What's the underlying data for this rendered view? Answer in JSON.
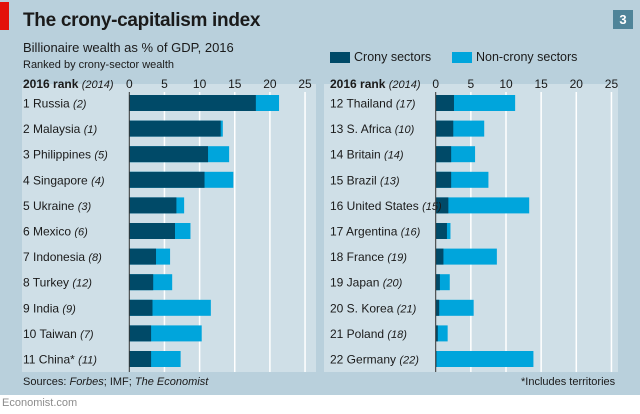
{
  "header": {
    "title": "The crony-capitalism index",
    "subtitle": "Billionaire wealth as % of GDP, 2016",
    "note": "Ranked by crony-sector wealth",
    "chart_number": "3"
  },
  "footer": {
    "sources_prefix": "Sources: ",
    "sources_forbes": "Forbes",
    "sources_mid": "; IMF; ",
    "sources_economist": "The Economist",
    "footnote": "*Includes territories",
    "site": "Economist.com"
  },
  "colors": {
    "crony": "#004a68",
    "noncrony": "#00a5dc",
    "background": "#b9d0dc",
    "panel": "#cfdfe7",
    "accent": "#e3120b"
  },
  "chart_data": {
    "type": "bar",
    "orientation": "horizontal-stacked",
    "title": "The crony-capitalism index",
    "subtitle": "Billionaire wealth as % of GDP, 2016",
    "row_header": "2016 rank",
    "row_header_paren": "(2014)",
    "xlim": [
      0,
      25
    ],
    "xticks": [
      0,
      5,
      10,
      15,
      20,
      25
    ],
    "grid": true,
    "legend": [
      "Crony sectors",
      "Non-crony sectors"
    ],
    "legend_position": "top-right",
    "panels": [
      {
        "rows": [
          {
            "rank": "1",
            "country": "Russia",
            "rank2014": "(2)",
            "crony": 18.0,
            "total": 21.3
          },
          {
            "rank": "2",
            "country": "Malaysia",
            "rank2014": "(1)",
            "crony": 13.0,
            "total": 13.3
          },
          {
            "rank": "3",
            "country": "Philippines",
            "rank2014": "(5)",
            "crony": 11.2,
            "total": 14.2
          },
          {
            "rank": "4",
            "country": "Singapore",
            "rank2014": "(4)",
            "crony": 10.7,
            "total": 14.8
          },
          {
            "rank": "5",
            "country": "Ukraine",
            "rank2014": "(3)",
            "crony": 6.7,
            "total": 7.8
          },
          {
            "rank": "6",
            "country": "Mexico",
            "rank2014": "(6)",
            "crony": 6.5,
            "total": 8.7
          },
          {
            "rank": "7",
            "country": "Indonesia",
            "rank2014": "(8)",
            "crony": 3.8,
            "total": 5.8
          },
          {
            "rank": "8",
            "country": "Turkey",
            "rank2014": "(12)",
            "crony": 3.4,
            "total": 6.1
          },
          {
            "rank": "9",
            "country": "India",
            "rank2014": "(9)",
            "crony": 3.3,
            "total": 11.6
          },
          {
            "rank": "10",
            "country": "Taiwan",
            "rank2014": "(7)",
            "crony": 3.1,
            "total": 10.3
          },
          {
            "rank": "11",
            "country": "China*",
            "rank2014": "(11)",
            "crony": 3.1,
            "total": 7.3
          }
        ]
      },
      {
        "rows": [
          {
            "rank": "12",
            "country": "Thailand",
            "rank2014": "(17)",
            "crony": 2.6,
            "total": 11.3
          },
          {
            "rank": "13",
            "country": "S. Africa",
            "rank2014": "(10)",
            "crony": 2.5,
            "total": 6.9
          },
          {
            "rank": "14",
            "country": "Britain",
            "rank2014": "(14)",
            "crony": 2.2,
            "total": 5.6
          },
          {
            "rank": "15",
            "country": "Brazil",
            "rank2014": "(13)",
            "crony": 2.2,
            "total": 7.5
          },
          {
            "rank": "16",
            "country": "United States",
            "rank2014": "(15)",
            "crony": 1.8,
            "total": 13.3
          },
          {
            "rank": "17",
            "country": "Argentina",
            "rank2014": "(16)",
            "crony": 1.6,
            "total": 2.1
          },
          {
            "rank": "18",
            "country": "France",
            "rank2014": "(19)",
            "crony": 1.1,
            "total": 8.7
          },
          {
            "rank": "19",
            "country": "Japan",
            "rank2014": "(20)",
            "crony": 0.6,
            "total": 2.0
          },
          {
            "rank": "20",
            "country": "S. Korea",
            "rank2014": "(21)",
            "crony": 0.5,
            "total": 5.4
          },
          {
            "rank": "21",
            "country": "Poland",
            "rank2014": "(18)",
            "crony": 0.3,
            "total": 1.7
          },
          {
            "rank": "22",
            "country": "Germany",
            "rank2014": "(22)",
            "crony": 0.1,
            "total": 13.9
          }
        ]
      }
    ]
  }
}
